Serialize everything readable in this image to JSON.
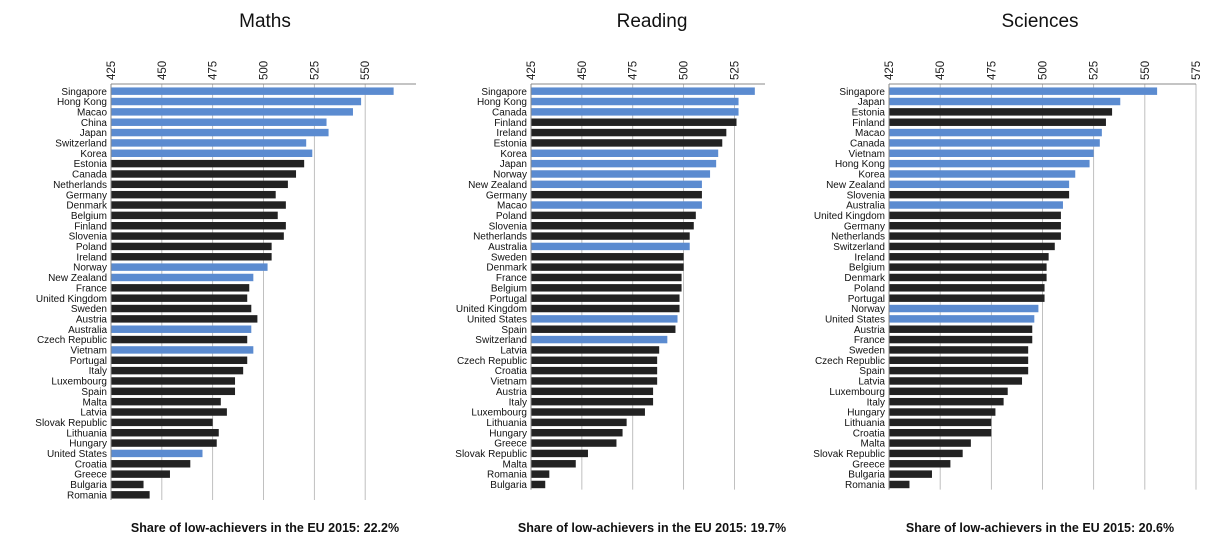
{
  "colors": {
    "highlight": "#5B8BD0",
    "default": "#222222",
    "grid": "#b0b0b0",
    "axis": "#888888"
  },
  "chart_data": [
    {
      "type": "bar",
      "orientation": "horizontal",
      "title": "Maths",
      "x_axis_position": "top",
      "xlim": [
        425,
        575
      ],
      "ticks": [
        425,
        450,
        475,
        500,
        525,
        550
      ],
      "footnote": "Share of low-achievers in the EU 2015: 22.2%",
      "categories": [
        "Singapore",
        "Hong Kong",
        "Macao",
        "China",
        "Japan",
        "Switzerland",
        "Korea",
        "Estonia",
        "Canada",
        "Netherlands",
        "Germany",
        "Denmark",
        "Belgium",
        "Finland",
        "Slovenia",
        "Poland",
        "Ireland",
        "Norway",
        "New Zealand",
        "France",
        "United Kingdom",
        "Sweden",
        "Austria",
        "Australia",
        "Czech Republic",
        "Vietnam",
        "Portugal",
        "Italy",
        "Luxembourg",
        "Spain",
        "Malta",
        "Latvia",
        "Slovak Republic",
        "Lithuania",
        "Hungary",
        "United States",
        "Croatia",
        "Greece",
        "Bulgaria",
        "Romania"
      ],
      "values": [
        564,
        548,
        544,
        531,
        532,
        521,
        524,
        520,
        516,
        512,
        506,
        511,
        507,
        511,
        510,
        504,
        504,
        502,
        495,
        493,
        492,
        494,
        497,
        494,
        492,
        495,
        492,
        490,
        486,
        486,
        479,
        482,
        475,
        478,
        477,
        470,
        464,
        454,
        441,
        444
      ],
      "highlighted": [
        true,
        true,
        true,
        true,
        true,
        true,
        true,
        false,
        false,
        false,
        false,
        false,
        false,
        false,
        false,
        false,
        false,
        true,
        true,
        false,
        false,
        false,
        false,
        true,
        false,
        true,
        false,
        false,
        false,
        false,
        false,
        false,
        false,
        false,
        false,
        true,
        false,
        false,
        false,
        false
      ]
    },
    {
      "type": "bar",
      "orientation": "horizontal",
      "title": "Reading",
      "x_axis_position": "top",
      "xlim": [
        425,
        540
      ],
      "ticks": [
        425,
        450,
        475,
        500,
        525
      ],
      "footnote": "Share of low-achievers in the EU 2015: 19.7%",
      "categories": [
        "Singapore",
        "Hong Kong",
        "Canada",
        "Finland",
        "Ireland",
        "Estonia",
        "Korea",
        "Japan",
        "Norway",
        "New Zealand",
        "Germany",
        "Macao",
        "Poland",
        "Slovenia",
        "Netherlands",
        "Australia",
        "Sweden",
        "Denmark",
        "France",
        "Belgium",
        "Portugal",
        "United Kingdom",
        "United States",
        "Spain",
        "Switzerland",
        "Latvia",
        "Czech Republic",
        "Croatia",
        "Vietnam",
        "Austria",
        "Italy",
        "Luxembourg",
        "Lithuania",
        "Hungary",
        "Greece",
        "Slovak Republic",
        "Malta",
        "Romania",
        "Bulgaria"
      ],
      "values": [
        535,
        527,
        527,
        526,
        521,
        519,
        517,
        516,
        513,
        509,
        509,
        509,
        506,
        505,
        503,
        503,
        500,
        500,
        499,
        499,
        498,
        498,
        497,
        496,
        492,
        488,
        487,
        487,
        487,
        485,
        485,
        481,
        472,
        470,
        467,
        453,
        447,
        434,
        432
      ],
      "highlighted": [
        true,
        true,
        true,
        false,
        false,
        false,
        true,
        true,
        true,
        true,
        false,
        true,
        false,
        false,
        false,
        true,
        false,
        false,
        false,
        false,
        false,
        false,
        true,
        false,
        true,
        false,
        false,
        false,
        false,
        false,
        false,
        false,
        false,
        false,
        false,
        false,
        false,
        false,
        false
      ]
    },
    {
      "type": "bar",
      "orientation": "horizontal",
      "title": "Sciences",
      "x_axis_position": "top",
      "xlim": [
        425,
        575
      ],
      "ticks": [
        425,
        450,
        475,
        500,
        525,
        550,
        575
      ],
      "footnote": "Share of low-achievers in the EU 2015: 20.6%",
      "categories": [
        "Singapore",
        "Japan",
        "Estonia",
        "Finland",
        "Macao",
        "Canada",
        "Vietnam",
        "Hong Kong",
        "Korea",
        "New Zealand",
        "Slovenia",
        "Australia",
        "United Kingdom",
        "Germany",
        "Netherlands",
        "Switzerland",
        "Ireland",
        "Belgium",
        "Denmark",
        "Poland",
        "Portugal",
        "Norway",
        "United States",
        "Austria",
        "France",
        "Sweden",
        "Czech Republic",
        "Spain",
        "Latvia",
        "Luxembourg",
        "Italy",
        "Hungary",
        "Lithuania",
        "Croatia",
        "Malta",
        "Slovak Republic",
        "Greece",
        "Bulgaria",
        "Romania"
      ],
      "values": [
        556,
        538,
        534,
        531,
        529,
        528,
        525,
        523,
        516,
        513,
        513,
        510,
        509,
        509,
        509,
        506,
        503,
        502,
        502,
        501,
        501,
        498,
        496,
        495,
        495,
        493,
        493,
        493,
        490,
        483,
        481,
        477,
        475,
        475,
        465,
        461,
        455,
        446,
        435
      ],
      "highlighted": [
        true,
        true,
        false,
        false,
        true,
        true,
        true,
        true,
        true,
        true,
        false,
        true,
        false,
        false,
        false,
        false,
        false,
        false,
        false,
        false,
        false,
        true,
        true,
        false,
        false,
        false,
        false,
        false,
        false,
        false,
        false,
        false,
        false,
        false,
        false,
        false,
        false,
        false,
        false
      ]
    }
  ]
}
